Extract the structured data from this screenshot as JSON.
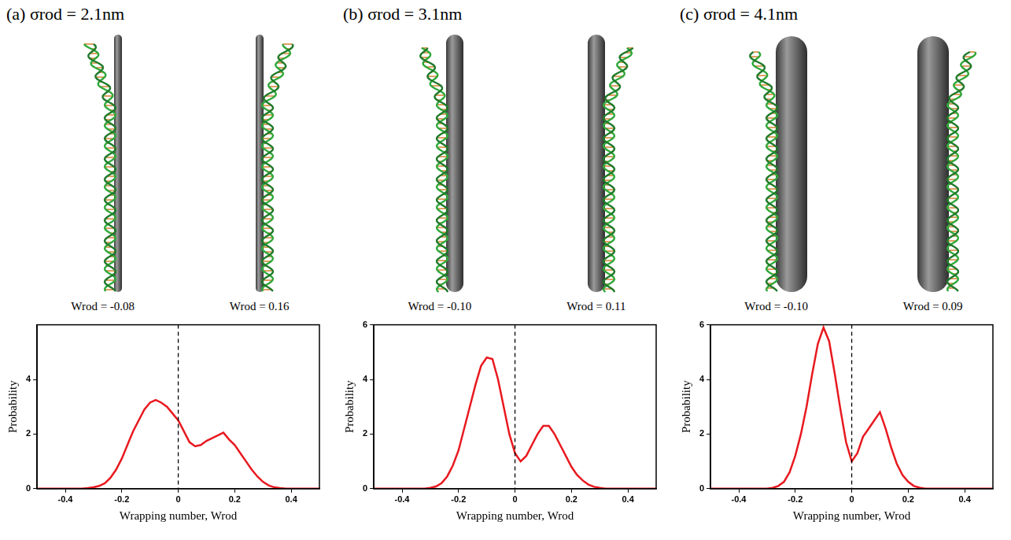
{
  "chart_data": [
    {
      "type": "line",
      "panel": "(a)",
      "title": "σrod = 2.1nm",
      "annotations": [
        "Wrod = -0.08",
        "Wrod = 0.16"
      ],
      "x_label": "Wrapping number, Wrod",
      "y_label": "Probability",
      "color": "#e8191f",
      "grid": false,
      "xlim": [
        -0.5,
        0.5
      ],
      "xticks": [
        -0.4,
        -0.2,
        0,
        0.2,
        0.4
      ],
      "ylim": [
        0,
        6
      ],
      "yticks": [
        0,
        2,
        4
      ],
      "reference_lines": [
        {
          "x": 0,
          "line_style": "dashed"
        }
      ],
      "x": [
        -0.5,
        -0.48,
        -0.46,
        -0.44,
        -0.42,
        -0.4,
        -0.38,
        -0.36,
        -0.34,
        -0.32,
        -0.3,
        -0.28,
        -0.26,
        -0.24,
        -0.22,
        -0.2,
        -0.18,
        -0.16,
        -0.14,
        -0.12,
        -0.1,
        -0.08,
        -0.06,
        -0.04,
        -0.02,
        0,
        0.02,
        0.04,
        0.06,
        0.08,
        0.1,
        0.12,
        0.14,
        0.16,
        0.18,
        0.2,
        0.22,
        0.24,
        0.26,
        0.28,
        0.3,
        0.32,
        0.34,
        0.36,
        0.38,
        0.4,
        0.42,
        0.44,
        0.46,
        0.48,
        0.5
      ],
      "values": [
        0,
        0,
        0,
        0,
        0,
        0,
        0,
        0,
        0,
        0.02,
        0.05,
        0.1,
        0.2,
        0.4,
        0.7,
        1.1,
        1.6,
        2.1,
        2.5,
        2.9,
        3.15,
        3.25,
        3.15,
        3.0,
        2.75,
        2.5,
        2.1,
        1.7,
        1.55,
        1.6,
        1.75,
        1.85,
        1.95,
        2.05,
        1.8,
        1.6,
        1.3,
        1.0,
        0.7,
        0.45,
        0.25,
        0.12,
        0.05,
        0.02,
        0,
        0,
        0,
        0,
        0,
        0,
        0
      ]
    },
    {
      "type": "line",
      "panel": "(b)",
      "title": "σrod = 3.1nm",
      "annotations": [
        "Wrod = -0.10",
        "Wrod = 0.11"
      ],
      "x_label": "Wrapping number, Wrod",
      "y_label": "Probability",
      "color": "#e8191f",
      "grid": false,
      "xlim": [
        -0.5,
        0.5
      ],
      "xticks": [
        -0.4,
        -0.2,
        0,
        0.2,
        0.4
      ],
      "ylim": [
        0,
        6
      ],
      "yticks": [
        0,
        2,
        4,
        6
      ],
      "reference_lines": [
        {
          "x": 0,
          "line_style": "dashed"
        }
      ],
      "x": [
        -0.5,
        -0.48,
        -0.46,
        -0.44,
        -0.42,
        -0.4,
        -0.38,
        -0.36,
        -0.34,
        -0.32,
        -0.3,
        -0.28,
        -0.26,
        -0.24,
        -0.22,
        -0.2,
        -0.18,
        -0.16,
        -0.14,
        -0.12,
        -0.1,
        -0.08,
        -0.06,
        -0.04,
        -0.02,
        0,
        0.02,
        0.04,
        0.06,
        0.08,
        0.1,
        0.12,
        0.14,
        0.16,
        0.18,
        0.2,
        0.22,
        0.24,
        0.26,
        0.28,
        0.3,
        0.32,
        0.34,
        0.36,
        0.38,
        0.4,
        0.42,
        0.44,
        0.46,
        0.48,
        0.5
      ],
      "values": [
        0,
        0,
        0,
        0,
        0,
        0,
        0,
        0,
        0,
        0,
        0.03,
        0.08,
        0.2,
        0.45,
        0.85,
        1.4,
        2.2,
        3.0,
        3.8,
        4.5,
        4.8,
        4.75,
        4.0,
        3.0,
        2.0,
        1.3,
        1.0,
        1.2,
        1.6,
        2.0,
        2.3,
        2.3,
        2.0,
        1.6,
        1.2,
        0.8,
        0.5,
        0.3,
        0.15,
        0.07,
        0.03,
        0,
        0,
        0,
        0,
        0,
        0,
        0,
        0,
        0,
        0
      ]
    },
    {
      "type": "line",
      "panel": "(c)",
      "title": "σrod = 4.1nm",
      "annotations": [
        "Wrod = -0.10",
        "Wrod = 0.09"
      ],
      "x_label": "Wrapping number, Wrod",
      "y_label": "Probability",
      "color": "#e8191f",
      "grid": false,
      "xlim": [
        -0.5,
        0.5
      ],
      "xticks": [
        -0.4,
        -0.2,
        0,
        0.2,
        0.4
      ],
      "ylim": [
        0,
        6
      ],
      "yticks": [
        0,
        2,
        4,
        6
      ],
      "reference_lines": [
        {
          "x": 0,
          "line_style": "dashed"
        }
      ],
      "x": [
        -0.5,
        -0.48,
        -0.46,
        -0.44,
        -0.42,
        -0.4,
        -0.38,
        -0.36,
        -0.34,
        -0.32,
        -0.3,
        -0.28,
        -0.26,
        -0.24,
        -0.22,
        -0.2,
        -0.18,
        -0.16,
        -0.14,
        -0.12,
        -0.1,
        -0.08,
        -0.06,
        -0.04,
        -0.02,
        0,
        0.02,
        0.04,
        0.06,
        0.08,
        0.1,
        0.12,
        0.14,
        0.16,
        0.18,
        0.2,
        0.22,
        0.24,
        0.26,
        0.28,
        0.3,
        0.32,
        0.34,
        0.36,
        0.38,
        0.4,
        0.42,
        0.44,
        0.46,
        0.48,
        0.5
      ],
      "values": [
        0,
        0,
        0,
        0,
        0,
        0,
        0,
        0,
        0,
        0,
        0,
        0.03,
        0.1,
        0.25,
        0.6,
        1.2,
        2.0,
        3.0,
        4.2,
        5.3,
        5.9,
        5.4,
        4.2,
        2.9,
        1.7,
        1.0,
        1.3,
        1.9,
        2.2,
        2.5,
        2.8,
        2.2,
        1.5,
        0.9,
        0.5,
        0.25,
        0.1,
        0.04,
        0,
        0,
        0,
        0,
        0,
        0,
        0,
        0,
        0,
        0,
        0,
        0,
        0
      ]
    }
  ]
}
